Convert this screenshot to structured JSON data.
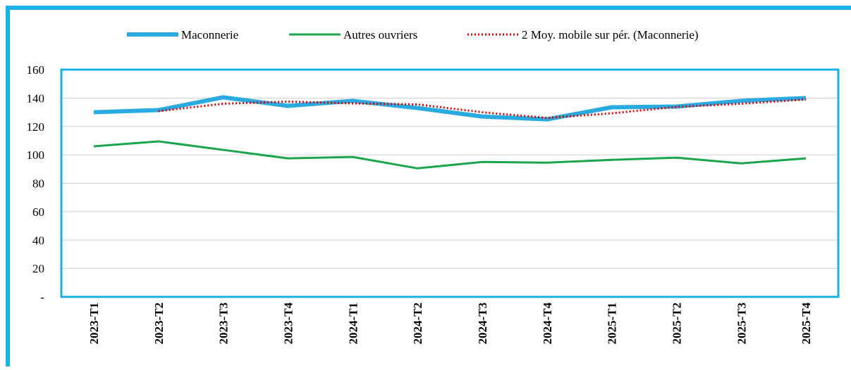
{
  "chart_data": {
    "type": "line",
    "categories": [
      "2023-T1",
      "2023-T2",
      "2023-T3",
      "2023-T4",
      "2024-T1",
      "2024-T2",
      "2024-T3",
      "2024-T4",
      "2025-T1",
      "2025-T2",
      "2025-T3",
      "2025-T4"
    ],
    "series": [
      {
        "name": "Maconnerie",
        "color": "#29abe2",
        "width": 6,
        "dash": false,
        "values": [
          130,
          131.5,
          140.5,
          134.5,
          138,
          133,
          127,
          125,
          133.5,
          134,
          138,
          140
        ]
      },
      {
        "name": "Autres ouvriers",
        "color": "#1aa64a",
        "width": 3,
        "dash": false,
        "values": [
          106,
          109.5,
          103.5,
          97.5,
          98.5,
          90.5,
          95,
          94.5,
          96.5,
          98,
          94,
          97.5
        ]
      },
      {
        "name": "2 Moy. mobile sur pér. (Maconnerie)",
        "color": "#e00000",
        "width": 3,
        "dash": true,
        "values": [
          null,
          130.75,
          136,
          137.5,
          136.25,
          135.5,
          130,
          126,
          129.25,
          133.75,
          136,
          139
        ]
      }
    ],
    "ylim": [
      0,
      160
    ],
    "yticks": [
      {
        "value": 0,
        "label": "-"
      },
      20,
      40,
      60,
      80,
      100,
      120,
      140,
      160
    ],
    "grid": true,
    "legend": "top"
  }
}
